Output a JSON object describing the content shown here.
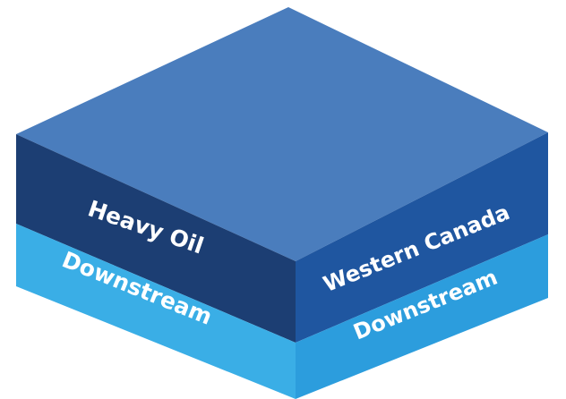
{
  "labels": {
    "heavy_oil": "Heavy Oil",
    "left_layer": "Downstream",
    "western_canada": "Western Canada",
    "right_layer": "Downstream"
  }
}
